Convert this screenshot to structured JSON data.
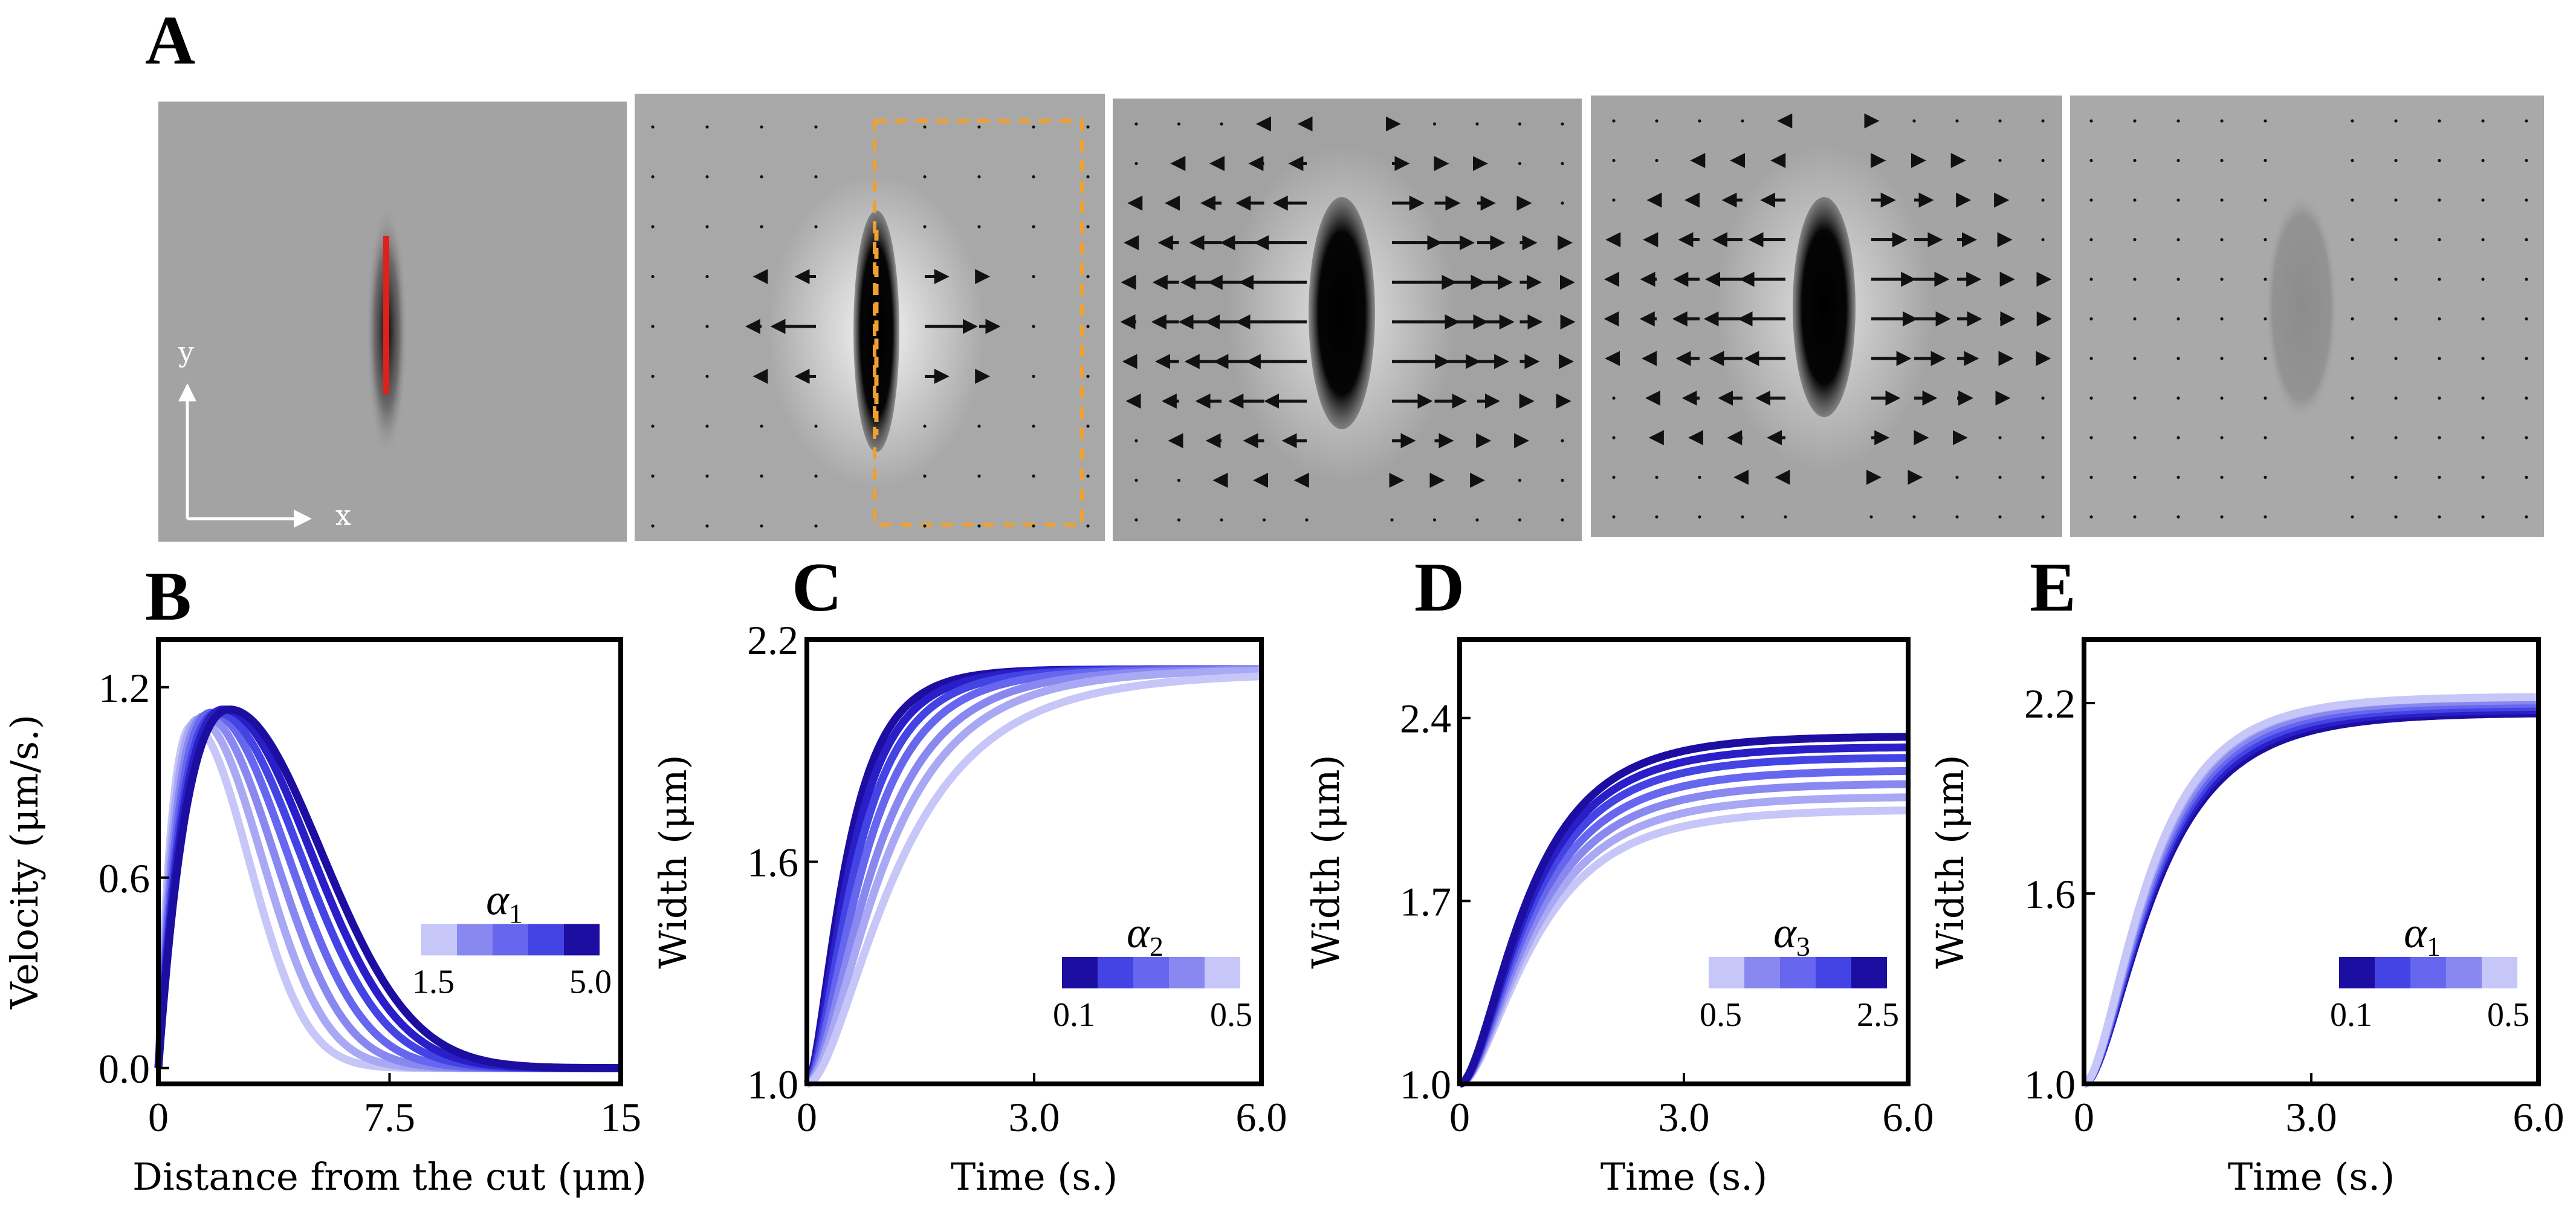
{
  "figure": {
    "panel_labels": [
      "A",
      "B",
      "C",
      "D",
      "E"
    ],
    "panelA": {
      "axis_x_label": "x",
      "axis_y_label": "y",
      "colors": {
        "cut_line": "#e0201a",
        "roi_box": "#f0a030",
        "arrows": "#111111"
      }
    }
  },
  "chart_data": [
    {
      "panel": "B",
      "type": "line",
      "xlabel": "Distance from the cut (μm)",
      "ylabel": "Velocity (μm/s.)",
      "xlim": [
        0,
        15
      ],
      "ylim": [
        -0.05,
        1.35
      ],
      "xticks": [
        "0",
        "7.5",
        "15"
      ],
      "yticks": [
        "0.0",
        "0.6",
        "1.2"
      ],
      "legend": {
        "symbol": "α",
        "sub": "1",
        "min_label": "1.5",
        "max_label": "5.0",
        "placement": "right-middle"
      },
      "colors": [
        "#c6c6f8",
        "#a8a8f4",
        "#8888f0",
        "#6666ee",
        "#4444e4",
        "#2a1ec8",
        "#1c0ea0"
      ],
      "series": [
        {
          "peak_x": 1.1,
          "peak_y": 1.08,
          "spread": 2.6
        },
        {
          "peak_x": 1.3,
          "peak_y": 1.1,
          "spread": 2.9
        },
        {
          "peak_x": 1.5,
          "peak_y": 1.11,
          "spread": 3.2
        },
        {
          "peak_x": 1.7,
          "peak_y": 1.12,
          "spread": 3.5
        },
        {
          "peak_x": 1.9,
          "peak_y": 1.12,
          "spread": 3.8
        },
        {
          "peak_x": 2.1,
          "peak_y": 1.13,
          "spread": 4.0
        },
        {
          "peak_x": 2.3,
          "peak_y": 1.13,
          "spread": 4.2
        }
      ]
    },
    {
      "panel": "C",
      "type": "line",
      "xlabel": "Time (s.)",
      "ylabel": "Width (μm)",
      "xlim": [
        0,
        6
      ],
      "ylim": [
        1.0,
        2.2
      ],
      "xticks": [
        "0",
        "3.0",
        "6.0"
      ],
      "yticks": [
        "1.0",
        "1.6",
        "2.2"
      ],
      "legend": {
        "symbol": "α",
        "sub": "2",
        "min_label": "0.1",
        "max_label": "0.5",
        "placement": "bottom-right"
      },
      "colors": [
        "#1c0ea0",
        "#2a1ec8",
        "#4444e4",
        "#6666ee",
        "#8888f0",
        "#a8a8f4",
        "#c6c6f8"
      ],
      "series": [
        {
          "plateau": 2.12,
          "rate": 1.9
        },
        {
          "plateau": 2.12,
          "rate": 1.7
        },
        {
          "plateau": 2.12,
          "rate": 1.5
        },
        {
          "plateau": 2.12,
          "rate": 1.3
        },
        {
          "plateau": 2.12,
          "rate": 1.1
        },
        {
          "plateau": 2.12,
          "rate": 0.95
        },
        {
          "plateau": 2.11,
          "rate": 0.8
        }
      ]
    },
    {
      "panel": "D",
      "type": "line",
      "xlabel": "Time (s.)",
      "ylabel": "Width (μm)",
      "xlim": [
        0,
        6
      ],
      "ylim": [
        1.0,
        2.7
      ],
      "xticks": [
        "0",
        "3.0",
        "6.0"
      ],
      "yticks": [
        "1.0",
        "1.7",
        "2.4"
      ],
      "legend": {
        "symbol": "α",
        "sub": "3",
        "min_label": "0.5",
        "max_label": "2.5",
        "placement": "bottom-right"
      },
      "colors": [
        "#c6c6f8",
        "#a8a8f4",
        "#8888f0",
        "#6666ee",
        "#4444e4",
        "#2a1ec8",
        "#1c0ea0"
      ],
      "series": [
        {
          "plateau": 2.05,
          "rate": 0.95
        },
        {
          "plateau": 2.1,
          "rate": 0.97
        },
        {
          "plateau": 2.15,
          "rate": 0.99
        },
        {
          "plateau": 2.2,
          "rate": 1.01
        },
        {
          "plateau": 2.25,
          "rate": 1.03
        },
        {
          "plateau": 2.29,
          "rate": 1.05
        },
        {
          "plateau": 2.33,
          "rate": 1.07
        }
      ]
    },
    {
      "panel": "E",
      "type": "line",
      "xlabel": "Time (s.)",
      "ylabel": "Width (μm)",
      "xlim": [
        0,
        6
      ],
      "ylim": [
        1.0,
        2.4
      ],
      "xticks": [
        "0",
        "3.0",
        "6.0"
      ],
      "yticks": [
        "1.0",
        "1.6",
        "2.2"
      ],
      "legend": {
        "symbol": "α",
        "sub": "1",
        "min_label": "0.1",
        "max_label": "0.5",
        "placement": "bottom-right"
      },
      "colors": [
        "#1c0ea0",
        "#2a1ec8",
        "#4444e4",
        "#6666ee",
        "#8888f0",
        "#a8a8f4",
        "#c6c6f8"
      ],
      "series": [
        {
          "plateau": 2.17,
          "rate": 1.02
        },
        {
          "plateau": 2.18,
          "rate": 1.04
        },
        {
          "plateau": 2.19,
          "rate": 1.06
        },
        {
          "plateau": 2.2,
          "rate": 1.08
        },
        {
          "plateau": 2.21,
          "rate": 1.1
        },
        {
          "plateau": 2.22,
          "rate": 1.12
        },
        {
          "plateau": 2.22,
          "rate": 1.14
        }
      ]
    }
  ]
}
